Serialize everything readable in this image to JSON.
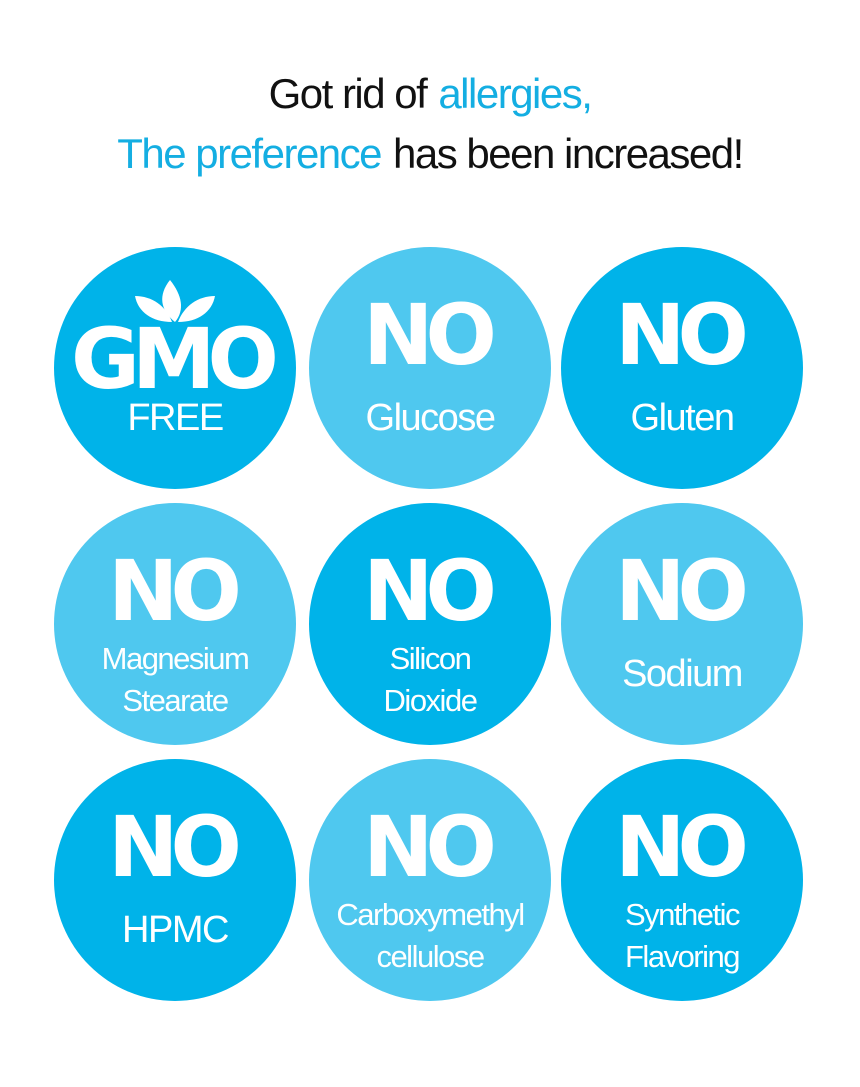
{
  "header": {
    "lines": [
      [
        {
          "text": "Got rid of",
          "accent": false
        },
        {
          "text": "allergies,",
          "accent": true
        }
      ],
      [
        {
          "text": "The preference",
          "accent": true
        },
        {
          "text": "has been increased!",
          "accent": false
        }
      ]
    ]
  },
  "badges": [
    {
      "headline": "GMO",
      "lines": [
        "FREE"
      ]
    },
    {
      "headline": "NO",
      "lines": [
        "Glucose"
      ]
    },
    {
      "headline": "NO",
      "lines": [
        "Gluten"
      ]
    },
    {
      "headline": "NO",
      "lines": [
        "Magnesium",
        "Stearate"
      ]
    },
    {
      "headline": "NO",
      "lines": [
        "Silicon",
        "Dioxide"
      ]
    },
    {
      "headline": "NO",
      "lines": [
        "Sodium"
      ]
    },
    {
      "headline": "NO",
      "lines": [
        "HPMC"
      ]
    },
    {
      "headline": "NO",
      "lines": [
        "Carboxymethyl",
        "cellulose"
      ]
    },
    {
      "headline": "NO",
      "lines": [
        "Synthetic",
        "Flavoring"
      ]
    }
  ]
}
